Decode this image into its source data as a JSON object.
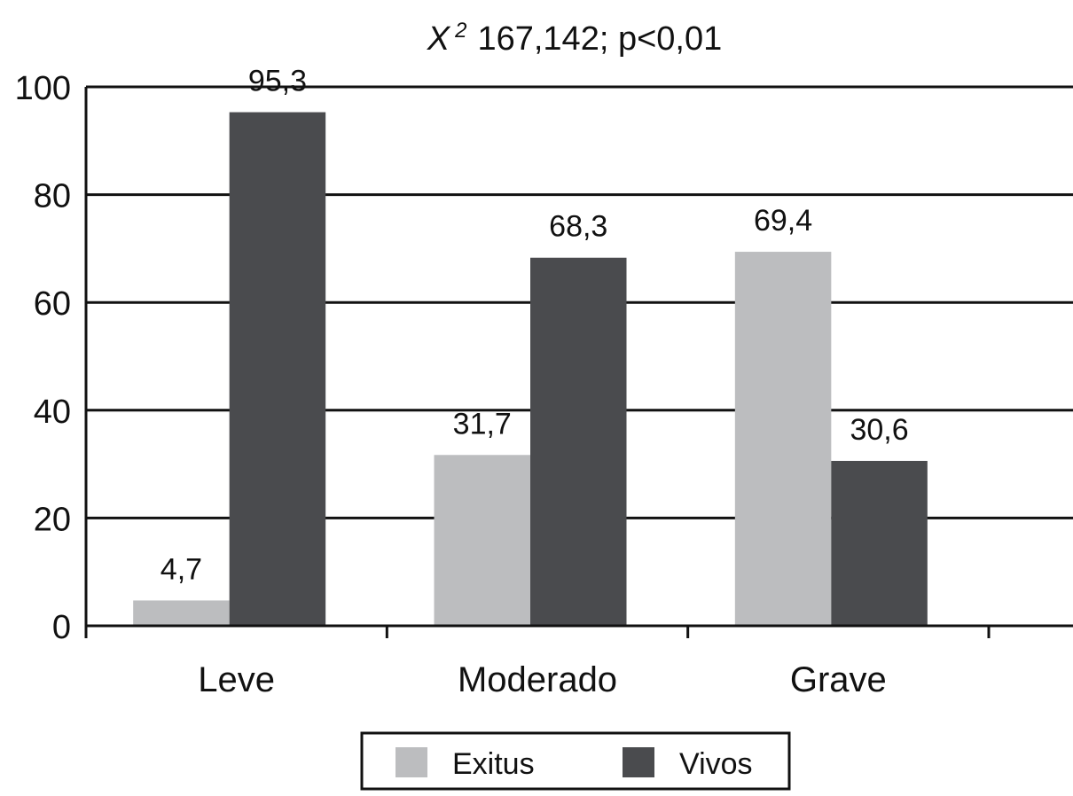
{
  "chart_data": {
    "type": "bar",
    "title": "167,142;  p<0,01",
    "title_stat_symbol": "X",
    "title_stat_superscript": "2",
    "categories": [
      "Leve",
      "Moderado",
      "Grave"
    ],
    "series": [
      {
        "name": "Exitus",
        "values": [
          4.7,
          31.7,
          69.4
        ],
        "color": "#bcbdbf"
      },
      {
        "name": "Vivos",
        "values": [
          95.3,
          68.3,
          30.6
        ],
        "color": "#4a4b4e"
      }
    ],
    "data_labels": [
      [
        "4,7",
        "31,7",
        "69,4"
      ],
      [
        "95,3",
        "68,3",
        "30,6"
      ]
    ],
    "yticks": [
      "0",
      "20",
      "40",
      "60",
      "80",
      "100"
    ],
    "ylim": [
      0,
      100
    ],
    "xlabel": "",
    "ylabel": "",
    "grid": true,
    "legend_position": "bottom-center"
  }
}
